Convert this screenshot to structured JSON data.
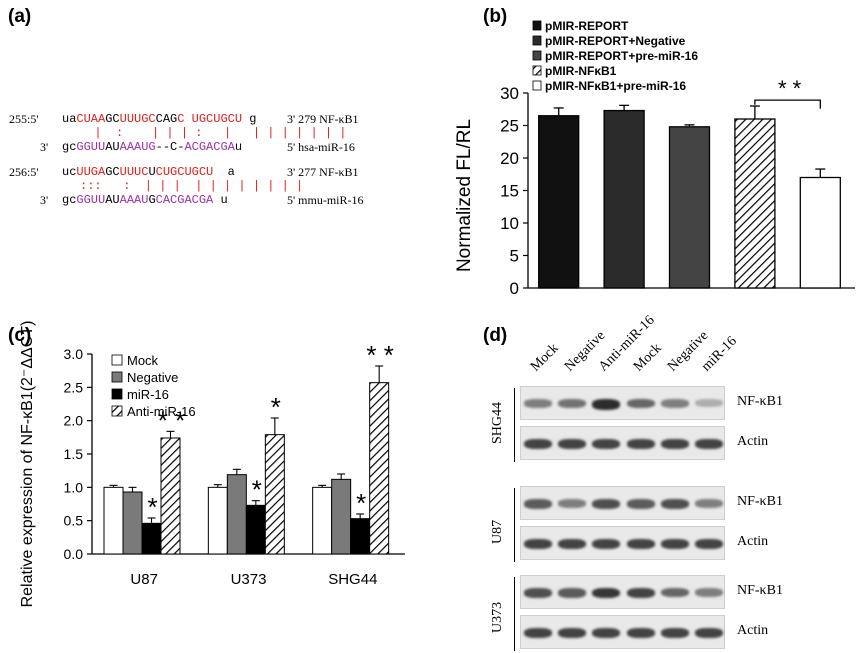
{
  "panels": {
    "a": "(a)",
    "b": "(b)",
    "c": "(c)",
    "d": "(d)"
  },
  "panel_a": {
    "rows": [
      {
        "left": "255:5'",
        "right": "3' 279 NF-κB1"
      },
      {
        "left": "3'",
        "right": "5' hsa-miR-16"
      },
      {
        "left": "256:5'",
        "right": "3' 277 NF-κB1"
      },
      {
        "left": "3'",
        "right": "5' mmu-miR-16"
      }
    ]
  },
  "chart_data": [
    {
      "type": "bar",
      "panel": "(b)",
      "title": "",
      "xlabel": "",
      "ylabel": "Normalized FL/RL",
      "ylim": [
        0,
        30
      ],
      "yticks": [
        "0",
        "5",
        "10",
        "15",
        "20",
        "25",
        "30"
      ],
      "legend": [
        "pMIR-REPORT",
        "pMIR-REPORT+Negative",
        "pMIR-REPORT+pre-miR-16",
        "pMIR-NFκB1",
        "pMIR-NFκB1+pre-miR-16"
      ],
      "legend_position": "top-left",
      "categories": [
        "pMIR-REPORT",
        "pMIR-REPORT+Negative",
        "pMIR-REPORT+pre-miR-16",
        "pMIR-NFκB1",
        "pMIR-NFκB1+pre-miR-16"
      ],
      "values": [
        26.5,
        27.3,
        24.8,
        26.0,
        17.0
      ],
      "errors": [
        1.2,
        0.8,
        0.3,
        2.0,
        1.3
      ],
      "colors": [
        "#111111",
        "#2b2b2b",
        "#444444",
        "hatch",
        "#ffffff"
      ],
      "significance": "* *"
    },
    {
      "type": "bar",
      "panel": "(c)",
      "title": "",
      "xlabel": "",
      "ylabel": "Relative expression of NF-κB1(2⁻ΔΔCT)",
      "ylim": [
        0,
        3.0
      ],
      "yticks": [
        "0.0",
        "0.5",
        "1.0",
        "1.5",
        "2.0",
        "2.5",
        "3.0"
      ],
      "categories": [
        "U87",
        "U373",
        "SHG44"
      ],
      "legend_position": "top-left",
      "series": [
        {
          "name": "Mock",
          "values": [
            1.0,
            1.0,
            1.0
          ],
          "errors": [
            0.03,
            0.04,
            0.03
          ],
          "color": "#ffffff",
          "sig": [
            "",
            "",
            ""
          ]
        },
        {
          "name": "Negative",
          "values": [
            0.93,
            1.19,
            1.12
          ],
          "errors": [
            0.07,
            0.08,
            0.08
          ],
          "color": "#7a7a7a",
          "sig": [
            "",
            "",
            ""
          ]
        },
        {
          "name": "miR-16",
          "values": [
            0.46,
            0.73,
            0.53
          ],
          "errors": [
            0.08,
            0.07,
            0.07
          ],
          "color": "#000000",
          "sig": [
            "*",
            "*",
            "*"
          ]
        },
        {
          "name": "Anti-miR-16",
          "values": [
            1.74,
            1.79,
            2.57
          ],
          "errors": [
            0.1,
            0.25,
            0.25
          ],
          "color": "hatch",
          "sig": [
            "* *",
            "*",
            "* *"
          ]
        }
      ]
    }
  ],
  "panel_d": {
    "lanes": [
      "Mock",
      "Negative",
      "Anti-miR-16",
      "Mock",
      "Negative",
      "miR-16"
    ],
    "groups": [
      {
        "cell": "SHG44",
        "bands": [
          {
            "label": "NF-κB1",
            "intensity": [
              0.55,
              0.6,
              0.9,
              0.65,
              0.55,
              0.35
            ]
          },
          {
            "label": "Actin",
            "intensity": [
              0.8,
              0.8,
              0.8,
              0.8,
              0.8,
              0.8
            ]
          }
        ]
      },
      {
        "cell": "U87",
        "bands": [
          {
            "label": "NF-κB1",
            "intensity": [
              0.7,
              0.55,
              0.75,
              0.7,
              0.75,
              0.55
            ]
          },
          {
            "label": "Actin",
            "intensity": [
              0.8,
              0.8,
              0.8,
              0.8,
              0.8,
              0.8
            ]
          }
        ]
      },
      {
        "cell": "U373",
        "bands": [
          {
            "label": "NF-κB1",
            "intensity": [
              0.75,
              0.7,
              0.85,
              0.8,
              0.65,
              0.55
            ]
          },
          {
            "label": "Actin",
            "intensity": [
              0.8,
              0.8,
              0.8,
              0.8,
              0.8,
              0.8
            ]
          }
        ]
      }
    ]
  }
}
